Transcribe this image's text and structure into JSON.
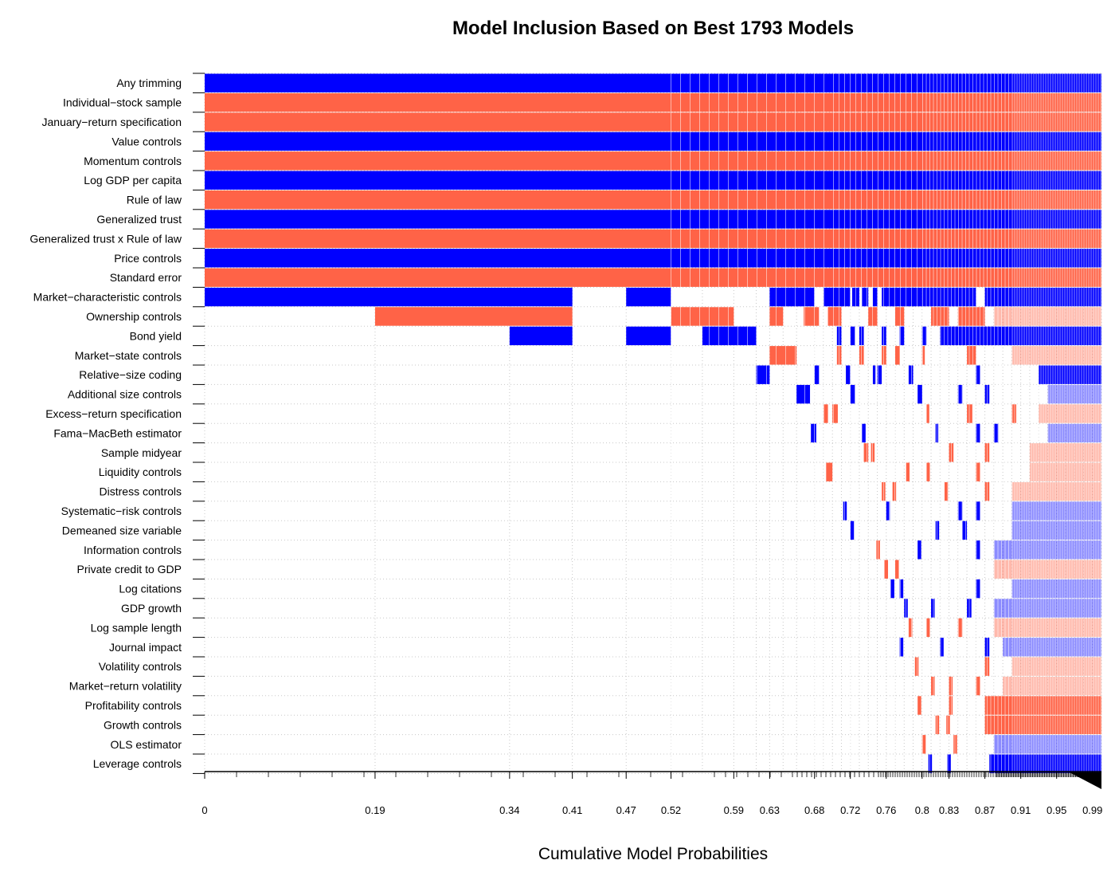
{
  "chart_data": {
    "type": "heatmap",
    "title": "Model Inclusion Based on Best  1793  Models",
    "xlabel": "Cumulative Model Probabilities",
    "ylabel": "",
    "xlim": [
      0,
      1
    ],
    "positive_color": "#0000ff",
    "negative_color": "#ff6347",
    "grid": true,
    "x_ticks": [
      "0",
      "0.19",
      "0.34",
      "0.41",
      "0.47",
      "0.52",
      "0.59",
      "0.63",
      "0.68",
      "0.72",
      "0.76",
      "0.8",
      "0.83",
      "0.87",
      "0.91",
      "0.95",
      "0.99"
    ],
    "x_tick_values": [
      0,
      0.19,
      0.34,
      0.41,
      0.47,
      0.52,
      0.59,
      0.63,
      0.68,
      0.72,
      0.76,
      0.8,
      0.83,
      0.87,
      0.91,
      0.95,
      0.99
    ],
    "model_boundaries": [
      0,
      0.19,
      0.34,
      0.41,
      0.47,
      0.52,
      0.555,
      0.59,
      0.615,
      0.63,
      0.645,
      0.66,
      0.68,
      0.69,
      0.7,
      0.71,
      0.72,
      0.73,
      0.74,
      0.75,
      0.76,
      0.77,
      0.78,
      0.79,
      0.8,
      0.81,
      0.82,
      0.83,
      0.84,
      0.85,
      0.86,
      0.87,
      0.88,
      0.89,
      0.9,
      0.91,
      0.92,
      0.93,
      0.94,
      0.95,
      0.96,
      0.97,
      0.98,
      0.99,
      1.0
    ],
    "variables": [
      {
        "name": "Any trimming",
        "segments": [
          [
            0,
            1.0,
            "+"
          ]
        ]
      },
      {
        "name": "Individual−stock sample",
        "segments": [
          [
            0,
            1.0,
            "-"
          ]
        ]
      },
      {
        "name": "January−return specification",
        "segments": [
          [
            0,
            1.0,
            "-"
          ]
        ]
      },
      {
        "name": "Value controls",
        "segments": [
          [
            0,
            1.0,
            "+"
          ]
        ]
      },
      {
        "name": "Momentum controls",
        "segments": [
          [
            0,
            1.0,
            "-"
          ]
        ]
      },
      {
        "name": "Log GDP per capita",
        "segments": [
          [
            0,
            1.0,
            "+"
          ]
        ]
      },
      {
        "name": "Rule of law",
        "segments": [
          [
            0,
            1.0,
            "-"
          ]
        ]
      },
      {
        "name": "Generalized trust",
        "segments": [
          [
            0,
            1.0,
            "+"
          ]
        ]
      },
      {
        "name": "Generalized trust x Rule of law",
        "segments": [
          [
            0,
            1.0,
            "-"
          ]
        ]
      },
      {
        "name": "Price controls",
        "segments": [
          [
            0,
            1.0,
            "+"
          ]
        ]
      },
      {
        "name": "Standard error",
        "segments": [
          [
            0,
            1.0,
            "-"
          ]
        ]
      },
      {
        "name": "Market−characteristic controls",
        "segments": [
          [
            0,
            0.41,
            "+"
          ],
          [
            0.47,
            0.52,
            "+"
          ],
          [
            0.63,
            0.68,
            "+"
          ],
          [
            0.69,
            0.72,
            "+"
          ],
          [
            0.722,
            0.73,
            "+"
          ],
          [
            0.733,
            0.74,
            "+"
          ],
          [
            0.745,
            0.75,
            "+"
          ],
          [
            0.755,
            0.8,
            "+"
          ],
          [
            0.8,
            0.86,
            "+"
          ],
          [
            0.87,
            1.0,
            "+"
          ]
        ]
      },
      {
        "name": "Ownership controls",
        "segments": [
          [
            0.19,
            0.41,
            "-"
          ],
          [
            0.52,
            0.59,
            "-"
          ],
          [
            0.63,
            0.645,
            "-"
          ],
          [
            0.668,
            0.685,
            "-"
          ],
          [
            0.695,
            0.71,
            "-"
          ],
          [
            0.74,
            0.75,
            "-"
          ],
          [
            0.77,
            0.78,
            "-"
          ],
          [
            0.81,
            0.83,
            "-"
          ],
          [
            0.84,
            0.87,
            "-"
          ],
          [
            0.88,
            1.0,
            "-"
          ]
        ]
      },
      {
        "name": "Bond yield",
        "segments": [
          [
            0.34,
            0.41,
            "+"
          ],
          [
            0.47,
            0.52,
            "+"
          ],
          [
            0.555,
            0.615,
            "+"
          ],
          [
            0.705,
            0.71,
            "+"
          ],
          [
            0.72,
            0.725,
            "+"
          ],
          [
            0.73,
            0.735,
            "+"
          ],
          [
            0.755,
            0.76,
            "+"
          ],
          [
            0.775,
            0.78,
            "+"
          ],
          [
            0.8,
            0.805,
            "+"
          ],
          [
            0.82,
            0.86,
            "+"
          ],
          [
            0.86,
            1.0,
            "+"
          ]
        ]
      },
      {
        "name": "Market−state controls",
        "segments": [
          [
            0.63,
            0.66,
            "-"
          ],
          [
            0.705,
            0.71,
            "-"
          ],
          [
            0.73,
            0.735,
            "-"
          ],
          [
            0.755,
            0.76,
            "-"
          ],
          [
            0.77,
            0.775,
            "-"
          ],
          [
            0.8,
            0.803,
            "-"
          ],
          [
            0.85,
            0.86,
            "-"
          ],
          [
            0.9,
            1.0,
            "-"
          ]
        ]
      },
      {
        "name": "Relative−size coding",
        "segments": [
          [
            0.615,
            0.63,
            "+"
          ],
          [
            0.68,
            0.685,
            "+"
          ],
          [
            0.715,
            0.72,
            "+"
          ],
          [
            0.745,
            0.748,
            "+"
          ],
          [
            0.75,
            0.755,
            "+"
          ],
          [
            0.785,
            0.79,
            "+"
          ],
          [
            0.86,
            0.865,
            "+"
          ],
          [
            0.93,
            0.98,
            "+"
          ],
          [
            0.98,
            1.0,
            "+"
          ]
        ]
      },
      {
        "name": "Additional size controls",
        "segments": [
          [
            0.66,
            0.675,
            "+"
          ],
          [
            0.72,
            0.725,
            "+"
          ],
          [
            0.795,
            0.8,
            "+"
          ],
          [
            0.84,
            0.845,
            "+"
          ],
          [
            0.87,
            0.875,
            "+"
          ],
          [
            0.94,
            1.0,
            "+"
          ]
        ]
      },
      {
        "name": "Excess−return specification",
        "segments": [
          [
            0.69,
            0.695,
            "-"
          ],
          [
            0.7,
            0.706,
            "-"
          ],
          [
            0.805,
            0.808,
            "-"
          ],
          [
            0.85,
            0.856,
            "-"
          ],
          [
            0.9,
            0.905,
            "-"
          ],
          [
            0.93,
            1.0,
            "-"
          ]
        ]
      },
      {
        "name": "Fama−MacBeth estimator",
        "segments": [
          [
            0.676,
            0.682,
            "+"
          ],
          [
            0.733,
            0.737,
            "+"
          ],
          [
            0.815,
            0.818,
            "+"
          ],
          [
            0.86,
            0.865,
            "+"
          ],
          [
            0.88,
            0.885,
            "+"
          ],
          [
            0.94,
            1.0,
            "+"
          ]
        ]
      },
      {
        "name": "Sample midyear",
        "segments": [
          [
            0.735,
            0.74,
            "-"
          ],
          [
            0.743,
            0.747,
            "-"
          ],
          [
            0.83,
            0.835,
            "-"
          ],
          [
            0.87,
            0.875,
            "-"
          ],
          [
            0.92,
            1.0,
            "-"
          ]
        ]
      },
      {
        "name": "Liquidity controls",
        "segments": [
          [
            0.693,
            0.7,
            "-"
          ],
          [
            0.782,
            0.786,
            "-"
          ],
          [
            0.805,
            0.809,
            "-"
          ],
          [
            0.86,
            0.865,
            "-"
          ],
          [
            0.92,
            1.0,
            "-"
          ]
        ]
      },
      {
        "name": "Distress controls",
        "segments": [
          [
            0.755,
            0.759,
            "-"
          ],
          [
            0.767,
            0.771,
            "-"
          ],
          [
            0.825,
            0.829,
            "-"
          ],
          [
            0.87,
            0.875,
            "-"
          ],
          [
            0.9,
            1.0,
            "-"
          ]
        ]
      },
      {
        "name": "Systematic−risk controls",
        "segments": [
          [
            0.712,
            0.716,
            "+"
          ],
          [
            0.76,
            0.764,
            "+"
          ],
          [
            0.84,
            0.845,
            "+"
          ],
          [
            0.86,
            0.865,
            "+"
          ],
          [
            0.9,
            1.0,
            "+"
          ]
        ]
      },
      {
        "name": "Demeaned size variable",
        "segments": [
          [
            0.72,
            0.724,
            "+"
          ],
          [
            0.815,
            0.819,
            "+"
          ],
          [
            0.845,
            0.85,
            "+"
          ],
          [
            0.9,
            1.0,
            "+"
          ]
        ]
      },
      {
        "name": "Information controls",
        "segments": [
          [
            0.749,
            0.753,
            "-"
          ],
          [
            0.795,
            0.799,
            "+"
          ],
          [
            0.86,
            0.865,
            "+"
          ],
          [
            0.88,
            1.0,
            "+"
          ]
        ]
      },
      {
        "name": "Private credit to GDP",
        "segments": [
          [
            0.758,
            0.762,
            "-"
          ],
          [
            0.77,
            0.774,
            "-"
          ],
          [
            0.88,
            1.0,
            "-"
          ]
        ]
      },
      {
        "name": "Log citations",
        "segments": [
          [
            0.765,
            0.769,
            "+"
          ],
          [
            0.775,
            0.779,
            "+"
          ],
          [
            0.86,
            0.865,
            "+"
          ],
          [
            0.9,
            1.0,
            "+"
          ]
        ]
      },
      {
        "name": "GDP growth",
        "segments": [
          [
            0.78,
            0.784,
            "+"
          ],
          [
            0.81,
            0.814,
            "+"
          ],
          [
            0.85,
            0.855,
            "+"
          ],
          [
            0.88,
            1.0,
            "+"
          ]
        ]
      },
      {
        "name": "Log sample length",
        "segments": [
          [
            0.785,
            0.789,
            "-"
          ],
          [
            0.805,
            0.809,
            "-"
          ],
          [
            0.84,
            0.845,
            "-"
          ],
          [
            0.88,
            1.0,
            "-"
          ]
        ]
      },
      {
        "name": "Journal impact",
        "segments": [
          [
            0.775,
            0.779,
            "+"
          ],
          [
            0.82,
            0.824,
            "+"
          ],
          [
            0.87,
            0.875,
            "+"
          ],
          [
            0.89,
            1.0,
            "+"
          ]
        ]
      },
      {
        "name": "Volatility controls",
        "segments": [
          [
            0.792,
            0.796,
            "-"
          ],
          [
            0.87,
            0.875,
            "-"
          ],
          [
            0.9,
            1.0,
            "-"
          ]
        ]
      },
      {
        "name": "Market−return volatility",
        "segments": [
          [
            0.81,
            0.814,
            "-"
          ],
          [
            0.83,
            0.834,
            "-"
          ],
          [
            0.86,
            0.865,
            "-"
          ],
          [
            0.89,
            1.0,
            "-"
          ]
        ]
      },
      {
        "name": "Profitability controls",
        "segments": [
          [
            0.795,
            0.799,
            "-"
          ],
          [
            0.83,
            0.834,
            "-"
          ],
          [
            0.87,
            1.0,
            "-"
          ]
        ]
      },
      {
        "name": "Growth controls",
        "segments": [
          [
            0.815,
            0.819,
            "-"
          ],
          [
            0.827,
            0.831,
            "-"
          ],
          [
            0.87,
            1.0,
            "-"
          ]
        ]
      },
      {
        "name": "OLS estimator",
        "segments": [
          [
            0.8,
            0.804,
            "-"
          ],
          [
            0.835,
            0.839,
            "-"
          ],
          [
            0.88,
            1.0,
            "+"
          ]
        ]
      },
      {
        "name": "Leverage controls",
        "segments": [
          [
            0.807,
            0.811,
            "+"
          ],
          [
            0.828,
            0.832,
            "+"
          ],
          [
            0.875,
            1.0,
            "+"
          ]
        ]
      }
    ]
  }
}
